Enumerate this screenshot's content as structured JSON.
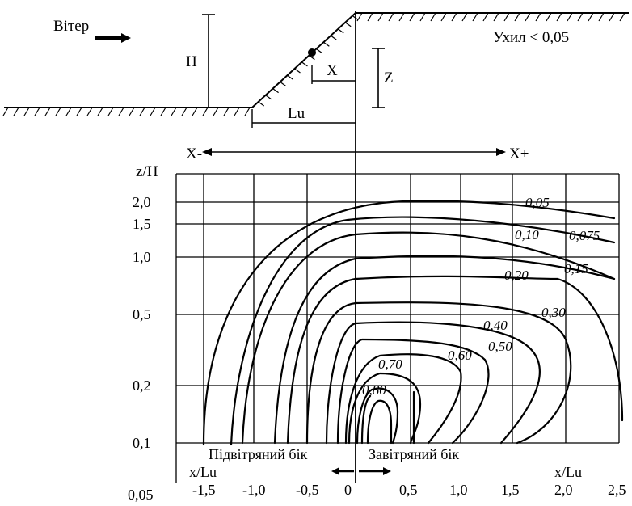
{
  "figure": {
    "wind_label": "Вітер",
    "height_label": "H",
    "x_label": "X",
    "z_label": "Z",
    "lu_label": "Lu",
    "slope_label": "Ухил < 0,05",
    "x_minus_label": "X-",
    "x_plus_label": "X+",
    "upwind_label": "Підвітряний бік",
    "downwind_label": "Завітряний бік"
  },
  "chart_data": {
    "type": "contour",
    "y_axis_label": "z/H",
    "x_axis_label_left": "x/Lu",
    "x_axis_label_right": "x/Lu",
    "y_scale": "log",
    "y_ticks": [
      "2,0",
      "1,5",
      "1,0",
      "0,5",
      "0,2",
      "0,1",
      "0,05"
    ],
    "x_ticks": [
      "-1,5",
      "-1,0",
      "-0,5",
      "0",
      "0,5",
      "1,0",
      "1,5",
      "2,0",
      "2,5"
    ],
    "grid": true,
    "contour_labels": [
      "0,05",
      "0,075",
      "0,10",
      "0,15",
      "0,20",
      "0,30",
      "0,40",
      "0,50",
      "0,60",
      "0,70",
      "0,80"
    ]
  }
}
